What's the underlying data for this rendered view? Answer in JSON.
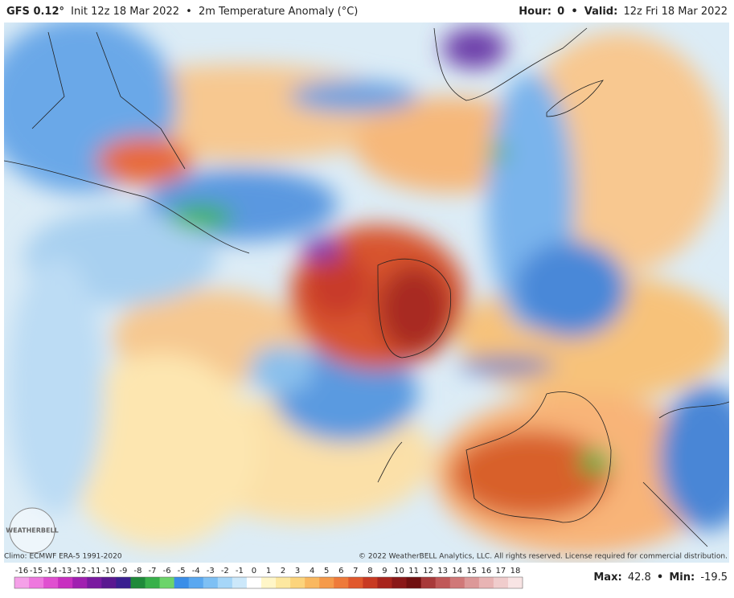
{
  "header": {
    "model": "GFS 0.12°",
    "init": "Init 12z 18 Mar 2022",
    "separator": "•",
    "field": "2m Temperature Anomaly (°C)",
    "hour_label": "Hour:",
    "hour": 0,
    "valid_label": "Valid:",
    "valid": "12z Fri 18 Mar 2022"
  },
  "watermark": "WEATHERBELL",
  "footer": {
    "climo": "Climo: ECMWF ERA-5 1991-2020",
    "copyright": "© 2022 WeatherBELL Analytics, LLC. All rights reserved. License required for commercial distribution."
  },
  "colorbar": {
    "ticks": [
      -16,
      -15,
      -14,
      -13,
      -12,
      -11,
      -10,
      -9,
      -8,
      -7,
      -6,
      -5,
      -4,
      -3,
      -2,
      -1,
      0,
      1,
      2,
      3,
      4,
      5,
      6,
      7,
      8,
      9,
      10,
      11,
      12,
      13,
      14,
      15,
      16,
      17,
      18
    ],
    "colors": [
      "#f5a0e8",
      "#ee78de",
      "#e050d0",
      "#c830c0",
      "#a020b0",
      "#7a1aa0",
      "#5a1890",
      "#3a2090",
      "#1f8a3a",
      "#38b04a",
      "#6cd46a",
      "#3a8ee8",
      "#5aa8f0",
      "#7ec0f4",
      "#a6d6f8",
      "#cce8fa",
      "#ffffff",
      "#fff6c8",
      "#fde8a0",
      "#fcd47c",
      "#f9b860",
      "#f59a4a",
      "#ee7a3a",
      "#e0582c",
      "#c83a22",
      "#a8241c",
      "#8a1818",
      "#701010",
      "#a83a3a",
      "#c05858",
      "#d07878",
      "#dc9898",
      "#e8b4b4",
      "#f0cccc",
      "#f8e4e4"
    ]
  },
  "stats": {
    "max_label": "Max:",
    "max": 42.8,
    "separator": "•",
    "min_label": "Min:",
    "min": -19.5
  }
}
